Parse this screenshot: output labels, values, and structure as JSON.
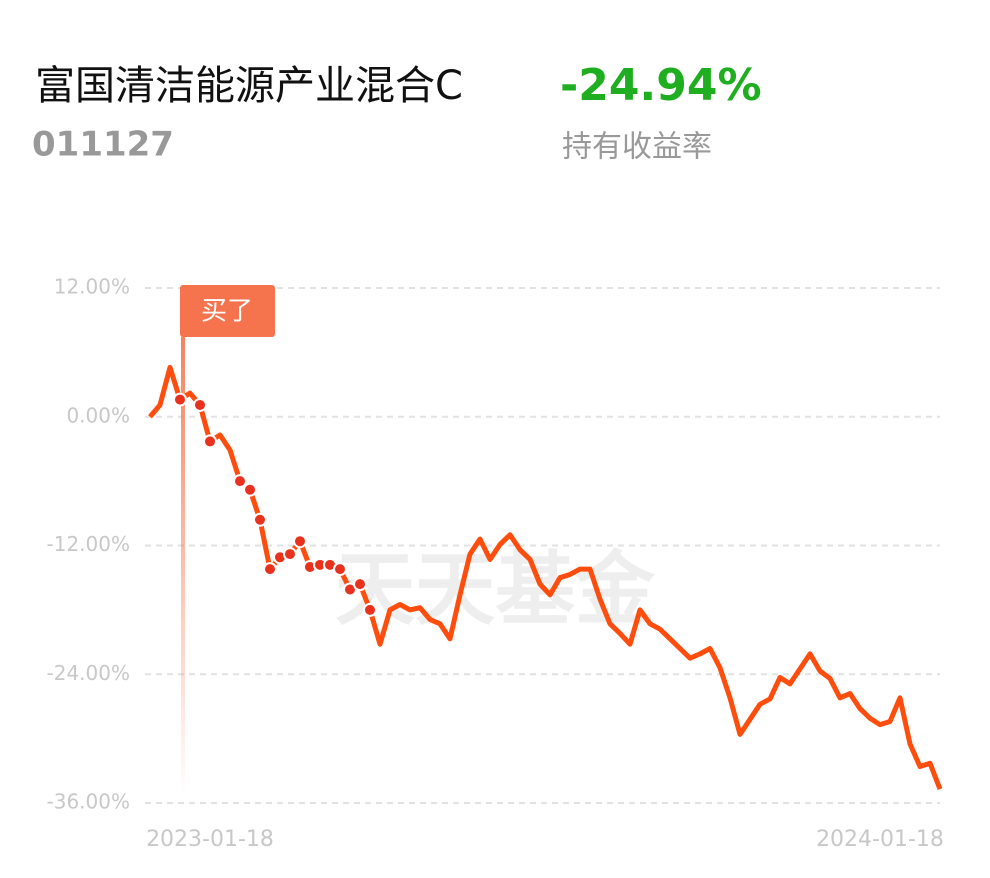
{
  "header": {
    "fund_name": "富国清洁能源产业混合C",
    "fund_code": "011127",
    "return": "-24.94%",
    "return_label": "持有收益率"
  },
  "chart_data": {
    "type": "line",
    "watermark": "天天基金",
    "annotation": "买了",
    "categories": [
      null,
      null,
      null,
      null,
      null,
      null,
      "2023-01-18",
      null,
      null,
      null,
      null,
      null,
      null,
      null,
      null,
      null,
      null,
      null,
      null,
      null,
      null,
      null,
      null,
      null,
      null,
      null,
      null,
      null,
      null,
      null,
      null,
      null,
      null,
      null,
      null,
      null,
      null,
      null,
      null,
      null,
      null,
      null,
      null,
      null,
      null,
      null,
      null,
      null,
      null,
      null,
      null,
      null,
      null,
      null,
      null,
      null,
      null,
      null,
      null,
      null,
      null,
      null,
      null,
      null,
      null,
      null,
      null,
      null,
      null,
      null,
      null,
      null,
      null,
      "2024-01-18",
      null,
      null,
      null,
      null,
      null,
      null
    ],
    "series": [
      {
        "color": "#ff4d0d",
        "values": [
          0.0,
          1.1,
          4.6,
          1.6,
          2.2,
          1.1,
          -2.3,
          -1.7,
          -3.1,
          -6.0,
          -6.8,
          -9.6,
          -14.2,
          -13.1,
          -12.8,
          -11.6,
          -14.0,
          -13.8,
          -13.8,
          -14.2,
          -16.1,
          -15.6,
          -18.0,
          -21.2,
          -18.0,
          -17.5,
          -18.0,
          -17.8,
          -18.9,
          -19.3,
          -20.7,
          -16.6,
          -12.8,
          -11.4,
          -13.3,
          -11.9,
          -11.0,
          -12.4,
          -13.3,
          -15.6,
          -16.6,
          -15.0,
          -14.7,
          -14.2,
          -14.2,
          -17.0,
          -19.3,
          -20.2,
          -21.2,
          -18.0,
          -19.3,
          -19.8,
          -20.7,
          -21.6,
          -22.5,
          -22.1,
          -21.6,
          -23.4,
          -26.2,
          -29.6,
          -28.2,
          -26.8,
          -26.3,
          -24.3,
          -24.9,
          -23.5,
          -22.1,
          -23.7,
          -24.4,
          -26.2,
          -25.8,
          -27.2,
          -28.1,
          -28.7,
          -28.4,
          -26.2,
          -30.5,
          -32.6,
          -32.3,
          -34.7
        ]
      },
      {
        "color": "#e8321e",
        "values": [
          null,
          null,
          null,
          1.6,
          null,
          1.1,
          -2.3,
          null,
          null,
          -6.0,
          -6.8,
          -9.6,
          -14.2,
          -13.1,
          -12.8,
          -11.6,
          -14.0,
          -13.8,
          -13.8,
          -14.2,
          -16.1,
          -15.6,
          -18.0,
          null,
          null,
          null,
          null,
          null,
          null,
          null,
          null,
          null,
          null,
          null,
          null,
          null,
          null,
          null,
          null,
          null,
          null,
          null,
          null,
          null,
          null,
          null,
          null,
          null,
          null,
          null,
          null,
          null,
          null,
          null,
          null,
          null,
          null,
          null,
          null,
          null,
          null,
          null,
          null,
          null,
          null,
          null,
          null,
          null,
          null,
          null,
          null,
          null,
          null,
          null,
          null,
          null,
          null,
          null,
          null,
          null
        ]
      }
    ],
    "ylim": [
      -36,
      12
    ],
    "yticks": [
      {
        "value": 12,
        "label": "12.00%"
      },
      {
        "value": 0,
        "label": "0.00%"
      },
      {
        "value": -12,
        "label": "-12.00%"
      },
      {
        "value": -24,
        "label": "-24.00%"
      },
      {
        "value": -36,
        "label": "-36.00%"
      }
    ],
    "grid": true
  }
}
